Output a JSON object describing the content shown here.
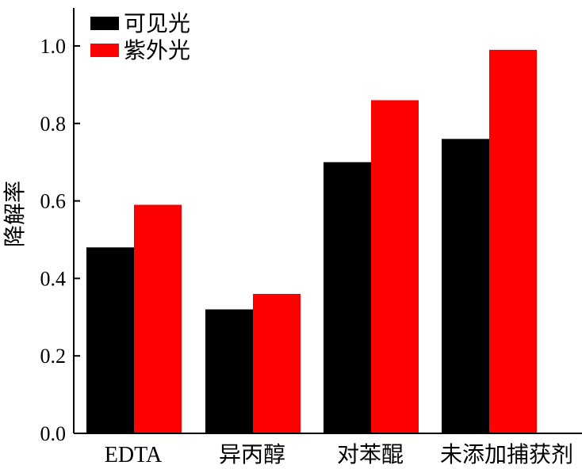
{
  "chart_data": {
    "type": "bar",
    "title": "",
    "xlabel": "",
    "ylabel": "降解率",
    "categories": [
      "EDTA",
      "异丙醇",
      "对苯醌",
      "未添加捕获剂"
    ],
    "series": [
      {
        "name": "可见光",
        "color": "#000000",
        "values": [
          0.48,
          0.32,
          0.7,
          0.76
        ]
      },
      {
        "name": "紫外光",
        "color": "#ff0000",
        "values": [
          0.59,
          0.36,
          0.86,
          0.99
        ]
      }
    ],
    "ylim": [
      0.0,
      1.1
    ],
    "yticks": [
      "0.0",
      "0.2",
      "0.4",
      "0.6",
      "0.8",
      "1.0"
    ],
    "legend_position": "top-left",
    "grid": false
  }
}
